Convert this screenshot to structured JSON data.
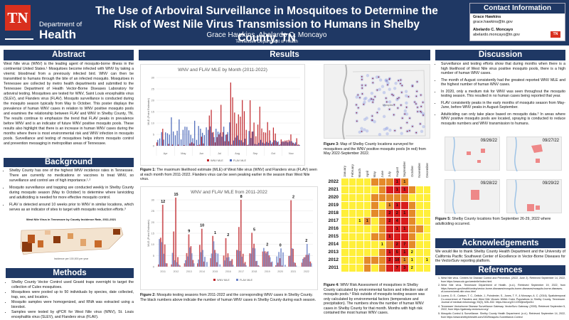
{
  "header": {
    "logo_abbr": "TN",
    "logo_line1": "Department of",
    "logo_line2": "Health",
    "title": "The Use of Arboviral Surveillance in Mosquitoes to Determine the Risk of West Nile Virus Transmission to Humans in Shelby County, TN",
    "authors": "Grace Hawkins, Abelardo C. Moncayo",
    "affiliation": "Tennessee Department of Health"
  },
  "contact": {
    "heading": "Contact Information",
    "people": [
      {
        "name": "Grace Hawkins",
        "email": "grace.hawkins@tn.gov"
      },
      {
        "name": "Abelardo C. Moncayo",
        "email": "abelardo.moncayo@tn.gov"
      }
    ],
    "mini_logo": "TN"
  },
  "abstract": {
    "heading": "Abstract",
    "text": "West Nile virus (WNV) is the leading agent of mosquito-borne illness in the continental United States.¹ Mosquitoes become infected with WNV by taking a viremic bloodmeal from a previously infected bird. WNV can then be transmitted to humans through the bite of an infected mosquito. Mosquitoes in Tennessee are collected by metro health departments and submitted to the Tennessee Department of Health Vector-Borne Diseases Laboratory for arboviral testing. Mosquitoes are tested for WNV, Saint Louis encephalitis virus (SLEV), and Flanders virus (FLAV). Mosquito surveillance is conducted during the mosquito season typically from May to October. This poster displays the prevalence of human WNV cases in relation to WNV positive mosquito pools and examines the relationship between FLAV and WNV in Shelby County, TN. The results continue to emphasize the trend that FLAV peaks in prevalence before WNV and is an indicator of future WNV positive mosquito pools. These results also highlight that there is an increase in human WNV cases during the months where there is most environmental risk and WNV infection in mosquito pools. Surveillance and testing of mosquitoes helps inform mosquito control and prevention messaging in metropolitan areas of Tennessee."
  },
  "background": {
    "heading": "Background",
    "bullets": [
      "Shelby County has one of the highest WNV incidence rates in Tennessee. There are currently no medications or vaccines to treat WNV, so surveillance and control are of high importance.¹˒²",
      "Mosquito surveillance and trapping are conducted weekly in Shelby County during mosquito season (May to October) to determine where larviciding and adulticiding is needed for more effective mosquito control.",
      "FLAV is detected around 10 weeks prior to WNV in similar locations, which serves as an indicator of sites to target with mosquito reduction efforts.³"
    ],
    "map_title": "West Nile Virus in Tennessee by County Incidence Rate, 2011-2021",
    "map_legend_title": "Incidence per 100,000 per year"
  },
  "methods": {
    "heading": "Methods",
    "bullets": [
      "Shelby County Vector Control used Gravid traps overnight to target the collection of Culex mosquitoes.",
      "Mosquitoes were pooled up to 50 individuals by species, date collected, trap, sex, and location.",
      "Mosquito samples were homogenized, and RNA was extracted using a biorobot.",
      "Samples were tested by qPCR for West Nile virus (WNV), St. Louis encephalitis virus (SLEV), and Flanders virus (FLAV)."
    ]
  },
  "results": {
    "heading": "Results",
    "fig1_caption_label": "Figure 1:",
    "fig1_caption": " The maximum likelihood estimate (MLE) of West Nile virus (WNV) and Flanders virus (FLAV) seen at each month from 2011-2022. Flanders virus can be seen peaking earlier in the season than West Nile virus.",
    "fig2_caption_label": "Figure 2:",
    "fig2_caption": " Mosquito testing seasons from 2011-2022 and the corresponding WNV cases in Shelby County. The black numbers above indicate the number of human WNV cases in Shelby County during each season.",
    "fig3_caption_label": "Figure 3:",
    "fig3_caption": " Map of Shelby County locations surveyed for mosquitoes and the WNV positive mosquito pools (in red) from May 2022-September 2022.",
    "fig4_caption_label": "Figure 4:",
    "fig4_caption": " WNV Risk Assessment of mosquitoes in Shelby County calculated by environmental factors and infection rate of mosquito pools.⁴ Risk outside of mosquito testing season was only calculated by environmental factors (temperature and precipitation). The numbers show the number of human WNV cases in Shelby County for that month. Months with high risk contained the most human WNV cases.",
    "map_label": "Memphis"
  },
  "chart_data": [
    {
      "type": "bar",
      "title": "WNV and FLAV MLE by Month (2011-2022)",
      "ylabel": "MLE (Point Estimate)",
      "xlabel": "",
      "ylim": [
        0,
        30
      ],
      "yticks": [
        0,
        5,
        10,
        15,
        20,
        25,
        30
      ],
      "month_groups": [
        "Apr",
        "May",
        "Jun",
        "Jul",
        "Aug",
        "Sep",
        "Oct",
        "Nov"
      ],
      "legend": [
        "WNV MLE",
        "FLAV MLE"
      ],
      "legend_position": "bottom",
      "series": [
        {
          "name": "WNV MLE",
          "color": "#c0282d",
          "values": [
            1.5,
            0,
            0,
            7.5,
            0,
            0,
            0.8,
            0,
            0.5,
            0,
            0,
            0.5,
            0,
            0,
            0.3,
            0,
            0,
            1,
            1.5,
            1,
            0,
            0.3,
            0.5,
            4,
            1,
            0,
            0,
            13.3,
            15.8,
            6,
            1.5,
            3.8,
            5,
            18,
            6,
            2,
            5,
            2,
            27.8,
            21.3,
            14.6,
            9.8,
            13.8,
            12.8,
            20.1,
            15.2,
            7,
            0.5,
            20,
            6.2,
            10.2,
            4.2,
            9.3,
            17.2,
            7.6,
            6,
            5.8,
            10.4,
            6.8,
            0.8,
            8,
            5.4,
            1.6,
            0.3,
            2.8,
            2,
            2.3,
            2.4,
            2.6,
            5,
            1.4,
            0.8,
            3.3,
            0.6
          ]
        },
        {
          "name": "FLAV MLE",
          "color": "#4a67b8",
          "values": [
            2.6,
            3.2,
            6,
            2.7,
            5.9,
            5.5,
            4.9,
            12.5,
            6.3,
            4.6,
            6.6,
            11.6,
            2.8,
            7,
            8.4,
            8.3,
            6.8,
            4.8,
            3.3,
            11,
            2.6,
            8.7,
            7.5,
            5.7,
            4.7,
            8.1,
            7,
            8.5,
            5.8,
            3.8,
            7.5,
            6.2,
            5.8,
            4,
            8.4,
            4.8,
            6,
            10.3,
            0.5,
            2.3,
            3.6,
            4.5,
            2.6,
            2.4,
            1.5,
            3.1,
            0.3,
            6.5,
            3.4,
            6.3,
            0.8,
            0.6,
            1.3,
            2.6,
            1.4,
            1,
            1.7,
            1.3,
            2.3,
            1.5,
            2.4,
            2.2,
            1.9,
            0.7,
            1.8,
            1.7,
            1.9,
            1.5,
            2,
            2,
            1.3,
            1.5,
            0.4,
            0.3
          ]
        }
      ]
    },
    {
      "type": "bar",
      "title": "WNV and FLAV MLE from 2011-2022",
      "ylabel": "MLE (Point Estimate)",
      "ylim": [
        0,
        30
      ],
      "yticks": [
        0,
        5,
        10,
        15,
        20,
        25,
        30
      ],
      "legend": [
        "WNV MLE",
        "FLAV MLE"
      ],
      "legend_position": "bottom",
      "seasons": [
        "2011",
        "2012",
        "2013",
        "2014",
        "2015",
        "2016",
        "2017",
        "2018",
        "2019",
        "2020",
        "2021",
        "2022"
      ],
      "human_cases": [
        12,
        15,
        9,
        10,
        1,
        2,
        8,
        5,
        2,
        0,
        2,
        2
      ],
      "series": [
        {
          "name": "WNV MLE",
          "color": "#c0282d",
          "values_by_season": [
            [
              1,
              13,
              27.8,
              10,
              1.5
            ],
            [
              1,
              15.8,
              31,
              4.3,
              0.5
            ],
            [
              1.5,
              6.1,
              14.5,
              9.2,
              3
            ],
            [
              1.5,
              9.8,
              17,
              2.3,
              0
            ],
            [
              3.8,
              13.8,
              7.5,
              2,
              0
            ],
            [
              5,
              12.8,
              6,
              2.5,
              3.4
            ],
            [
              7.5,
              17.8,
              30,
              5.8,
              2.1
            ],
            [
              6,
              15.2,
              10.3,
              2.5,
              0.6
            ],
            [
              6.8,
              6.9,
              6.7,
              5.1,
              2
            ],
            [
              0.6,
              1.8,
              3.8,
              0.5,
              0
            ],
            [
              4.8,
              29.8,
              8,
              1.7,
              0
            ],
            [
              1.8,
              4.2,
              5.3,
              5.3,
              2.3
            ]
          ]
        },
        {
          "name": "FLAV MLE",
          "color": "#6f86c9",
          "values_by_season": [
            [
              12.4,
              11,
              5.8,
              1.6,
              0
            ],
            [
              6.2,
              2.9,
              2,
              1,
              0
            ],
            [
              2.9,
              4.6,
              8.6,
              6,
              1.5
            ],
            [
              3.2,
              6.5,
              7.5,
              4.4,
              2.1
            ],
            [
              5.9,
              11.4,
              6.2,
              5.9,
              1
            ],
            [
              2.8,
              4.1,
              4.3,
              2.7,
              0.8
            ],
            [
              7.4,
              7,
              4.5,
              1.5,
              0.6
            ],
            [
              5.9,
              8.4,
              8.2,
              2.6,
              0.4
            ],
            [
              8.4,
              6,
              6.9,
              4.2,
              2.3
            ],
            [
              4.6,
              6.6,
              8.2,
              6.4,
              0.8
            ],
            [
              4.9,
              8.3,
              2,
              0.5,
              0
            ],
            [
              3.5,
              4.3,
              10.2,
              6,
              1.5
            ]
          ]
        }
      ]
    },
    {
      "type": "heatmap",
      "title": "WNV Risk Assessment",
      "columns": [
        "January",
        "February",
        "March",
        "April",
        "May",
        "June",
        "July",
        "August",
        "September",
        "October",
        "November",
        "December"
      ],
      "rows": [
        "2022",
        "2021",
        "2020",
        "2019",
        "2018",
        "2017",
        "2016",
        "2015",
        "2014",
        "2013",
        "2012",
        "2011"
      ],
      "risk_levels": {
        "L": "low",
        "M": "medium",
        "H": "high",
        "N": "none"
      },
      "risk_colors": {
        "L": "#ffef3a",
        "M": "#e48a2a",
        "H": "#d81c1c",
        "N": "#ffffff"
      },
      "legend": [
        "Low risk",
        "Medium risk",
        "High risk"
      ],
      "risk": [
        [
          "L",
          "L",
          "L",
          "L",
          "M",
          "M",
          "M",
          "H",
          "M",
          "N",
          "N",
          "N"
        ],
        [
          "L",
          "L",
          "L",
          "L",
          "L",
          "M",
          "H",
          "H",
          "H",
          "M",
          "L",
          "L"
        ],
        [
          "L",
          "L",
          "L",
          "L",
          "M",
          "M",
          "M",
          "M",
          "M",
          "L",
          "L",
          "L"
        ],
        [
          "L",
          "L",
          "L",
          "L",
          "M",
          "L",
          "M",
          "H",
          "H",
          "M",
          "L",
          "L"
        ],
        [
          "L",
          "L",
          "L",
          "L",
          "M",
          "M",
          "H",
          "H",
          "H",
          "M",
          "L",
          "L"
        ],
        [
          "L",
          "L",
          "L",
          "M",
          "L",
          "M",
          "H",
          "H",
          "H",
          "M",
          "L",
          "L"
        ],
        [
          "L",
          "L",
          "L",
          "L",
          "L",
          "M",
          "H",
          "H",
          "H",
          "M",
          "M",
          "L"
        ],
        [
          "L",
          "L",
          "L",
          "L",
          "M",
          "M",
          "H",
          "H",
          "H",
          "M",
          "L",
          "L"
        ],
        [
          "L",
          "L",
          "L",
          "L",
          "L",
          "L",
          "M",
          "H",
          "H",
          "M",
          "L",
          "L"
        ],
        [
          "L",
          "L",
          "L",
          "L",
          "L",
          "M",
          "H",
          "H",
          "H",
          "L",
          "L",
          "L"
        ],
        [
          "L",
          "L",
          "L",
          "M",
          "M",
          "M",
          "H",
          "H",
          "M",
          "L",
          "L",
          "L"
        ],
        [
          "L",
          "L",
          "L",
          "M",
          "L",
          "M",
          "H",
          "H",
          "H",
          "L",
          "L",
          "L"
        ]
      ],
      "cases": [
        [
          null,
          null,
          null,
          null,
          null,
          null,
          null,
          1,
          1,
          null,
          null,
          null
        ],
        [
          null,
          null,
          null,
          null,
          null,
          null,
          null,
          1,
          1,
          null,
          null,
          null
        ],
        [
          null,
          null,
          null,
          null,
          null,
          null,
          null,
          null,
          null,
          null,
          null,
          null
        ],
        [
          null,
          null,
          null,
          null,
          null,
          null,
          1,
          1,
          null,
          null,
          null,
          null
        ],
        [
          null,
          null,
          null,
          null,
          null,
          null,
          2,
          2,
          1,
          null,
          null,
          null
        ],
        [
          null,
          null,
          1,
          1,
          null,
          null,
          2,
          4,
          null,
          null,
          null,
          null
        ],
        [
          null,
          null,
          null,
          null,
          null,
          null,
          null,
          1,
          1,
          null,
          null,
          null
        ],
        [
          null,
          null,
          null,
          null,
          null,
          null,
          1,
          null,
          null,
          null,
          null,
          null
        ],
        [
          null,
          null,
          null,
          null,
          null,
          1,
          null,
          2,
          7,
          null,
          null,
          null
        ],
        [
          null,
          null,
          null,
          null,
          null,
          null,
          1,
          5,
          1,
          2,
          null,
          null
        ],
        [
          null,
          null,
          null,
          null,
          null,
          null,
          2,
          10,
          1,
          1,
          null,
          1
        ],
        [
          null,
          null,
          null,
          null,
          null,
          null,
          null,
          7,
          3,
          2,
          null,
          null
        ]
      ]
    }
  ],
  "discussion": {
    "heading": "Discussion",
    "bullets": [
      "Surveillance and testing efforts show that during months when there is a high likelihood of West Nile virus positive mosquito pools, there is a high number of human WNV cases.",
      "The month of August consistently had the greatest reported WNV MLE and the highest number of human WNV cases.",
      "In 2020, only a medium risk for WNV was seen throughout the mosquito testing season. This resulted in no human cases being reported that year.",
      "FLAV consistently peaks in the early months of mosquito season from May-June, before WNV peaks in August-September.",
      "Adulticiding can only take place based on mosquito data.³ In areas where WNV positive mosquito pools are located, spraying is conducted to reduce mosquito numbers and WNV transmission to humans."
    ],
    "maps": [
      "09/26/22",
      "09/27/22",
      "09/28/22",
      "09/29/22"
    ],
    "fig5_caption_label": "Figure 5:",
    "fig5_caption": " Shelby County locations from September 26-29, 2022 where adulticiding occurred."
  },
  "acknowledgements": {
    "heading": "Acknowledgements",
    "text": "We would like to thank Shelby County Health Department and the University of California Pacific Southwest Center of Excellence in Vector-Borne Diseases for the VectorSurv reporting platform."
  },
  "references": {
    "heading": "References",
    "items": [
      "West Nile virus. Centers for Disease Control and Prevention. (2022, June 2). Retrieved September 14, 2022, from https://www.cdc.gov/westnile/index.html",
      "West Nile virus. Tennessee Department of Health. (n.d.). Retrieved September 19, 2022, from https://www.tn.gov/health/cedep/vector-borne-diseases/mosquito-borne-diseases/mosquito-borne-diseases-of-concern/west-nile-virus.html",
      "Lucero, D. E., Carlson, T. C., Delisle, J., Poindexter, S., Jones, T. F., & Moncayo, A. C. (2016). Spatiotemporal Co-occurrence of Flanders and West Nile Viruses Within Culex Populations in Shelby County, Tennessee. Journal of medical entomology, 53(3), 526–532. https://doi.org/10.1093/jme/tjw011",
      "Tennessee Vectorborne Disease Surveillance Gateway. VectorSurv Gateway. (2005). Retrieved September 5, 2022, from https://gateway.vectorsurv.org/",
      "Mosquito Control & Surveillance. Shelby County Health Department. (n.d.). Retrieved September 14, 2022, from https://www.shelbytnhealth.com/150/Mosquito-Surveillance-Control"
    ]
  }
}
